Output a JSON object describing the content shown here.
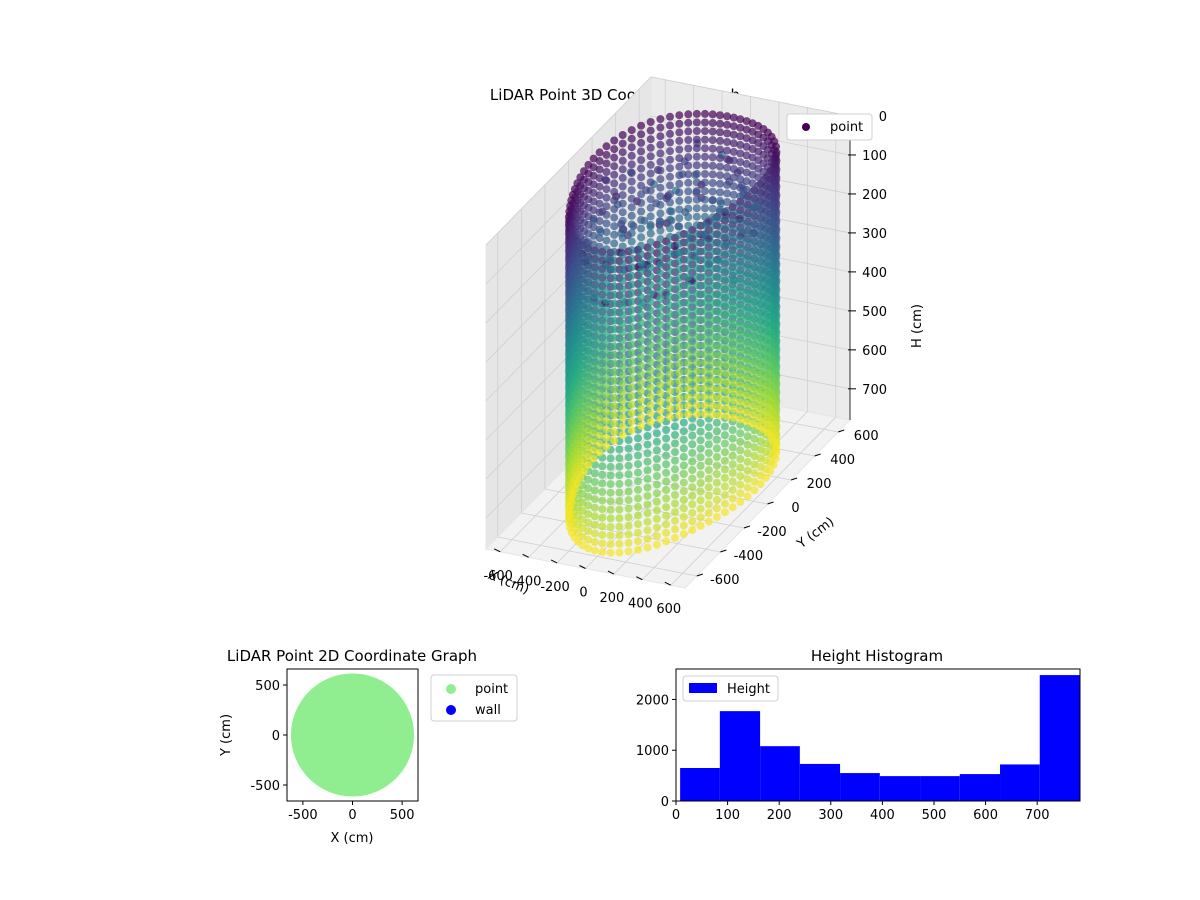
{
  "chart_data": [
    {
      "type": "scatter",
      "subtype": "3d",
      "title": "LiDAR Point 3D Coordinate Graph",
      "xlabel": "X (cm)",
      "ylabel": "Y (cm)",
      "zlabel": "H (cm)",
      "xlim": [
        -700,
        700
      ],
      "ylim": [
        -700,
        700
      ],
      "zlim": [
        780,
        0
      ],
      "x_ticks": [
        -600,
        -400,
        -200,
        0,
        200,
        400,
        600
      ],
      "y_ticks": [
        -600,
        -400,
        -200,
        0,
        200,
        400,
        600
      ],
      "z_ticks": [
        0,
        100,
        200,
        300,
        400,
        500,
        600,
        700
      ],
      "z_inverted": true,
      "colormap": "viridis",
      "legend": [
        "point"
      ],
      "legend_position": "top-right",
      "grid": true,
      "colors": {
        "point_legend": "#440154"
      }
    },
    {
      "type": "scatter",
      "title": "LiDAR Point 2D Coordinate Graph",
      "xlabel": "X (cm)",
      "ylabel": "Y (cm)",
      "xlim": [
        -660,
        660
      ],
      "ylim": [
        -660,
        660
      ],
      "x_ticks": [
        -500,
        0,
        500
      ],
      "y_ticks": [
        -500,
        0,
        500
      ],
      "series": [
        {
          "name": "point",
          "color": "#90ee90",
          "shape": "filled disc",
          "radius": 620
        },
        {
          "name": "wall",
          "color": "#0000ff",
          "values": []
        }
      ],
      "legend": [
        "point",
        "wall"
      ],
      "legend_position": "outside right"
    },
    {
      "type": "bar",
      "subtype": "histogram",
      "title": "Height Histogram",
      "xlabel": "",
      "ylabel": "",
      "bins": [
        {
          "start": 8,
          "end": 85,
          "value": 650
        },
        {
          "start": 85,
          "end": 163,
          "value": 1770
        },
        {
          "start": 163,
          "end": 240,
          "value": 1080
        },
        {
          "start": 240,
          "end": 318,
          "value": 730
        },
        {
          "start": 318,
          "end": 395,
          "value": 550
        },
        {
          "start": 395,
          "end": 473,
          "value": 490
        },
        {
          "start": 473,
          "end": 550,
          "value": 490
        },
        {
          "start": 550,
          "end": 628,
          "value": 530
        },
        {
          "start": 628,
          "end": 705,
          "value": 720
        },
        {
          "start": 705,
          "end": 783,
          "value": 2480
        }
      ],
      "xlim": [
        0,
        783
      ],
      "ylim": [
        0,
        2600
      ],
      "x_ticks": [
        0,
        100,
        200,
        300,
        400,
        500,
        600,
        700
      ],
      "y_ticks": [
        0,
        1000,
        2000
      ],
      "legend": [
        "Height"
      ],
      "legend_position": "top-left",
      "colors": {
        "bar": "#0000ff"
      }
    }
  ]
}
